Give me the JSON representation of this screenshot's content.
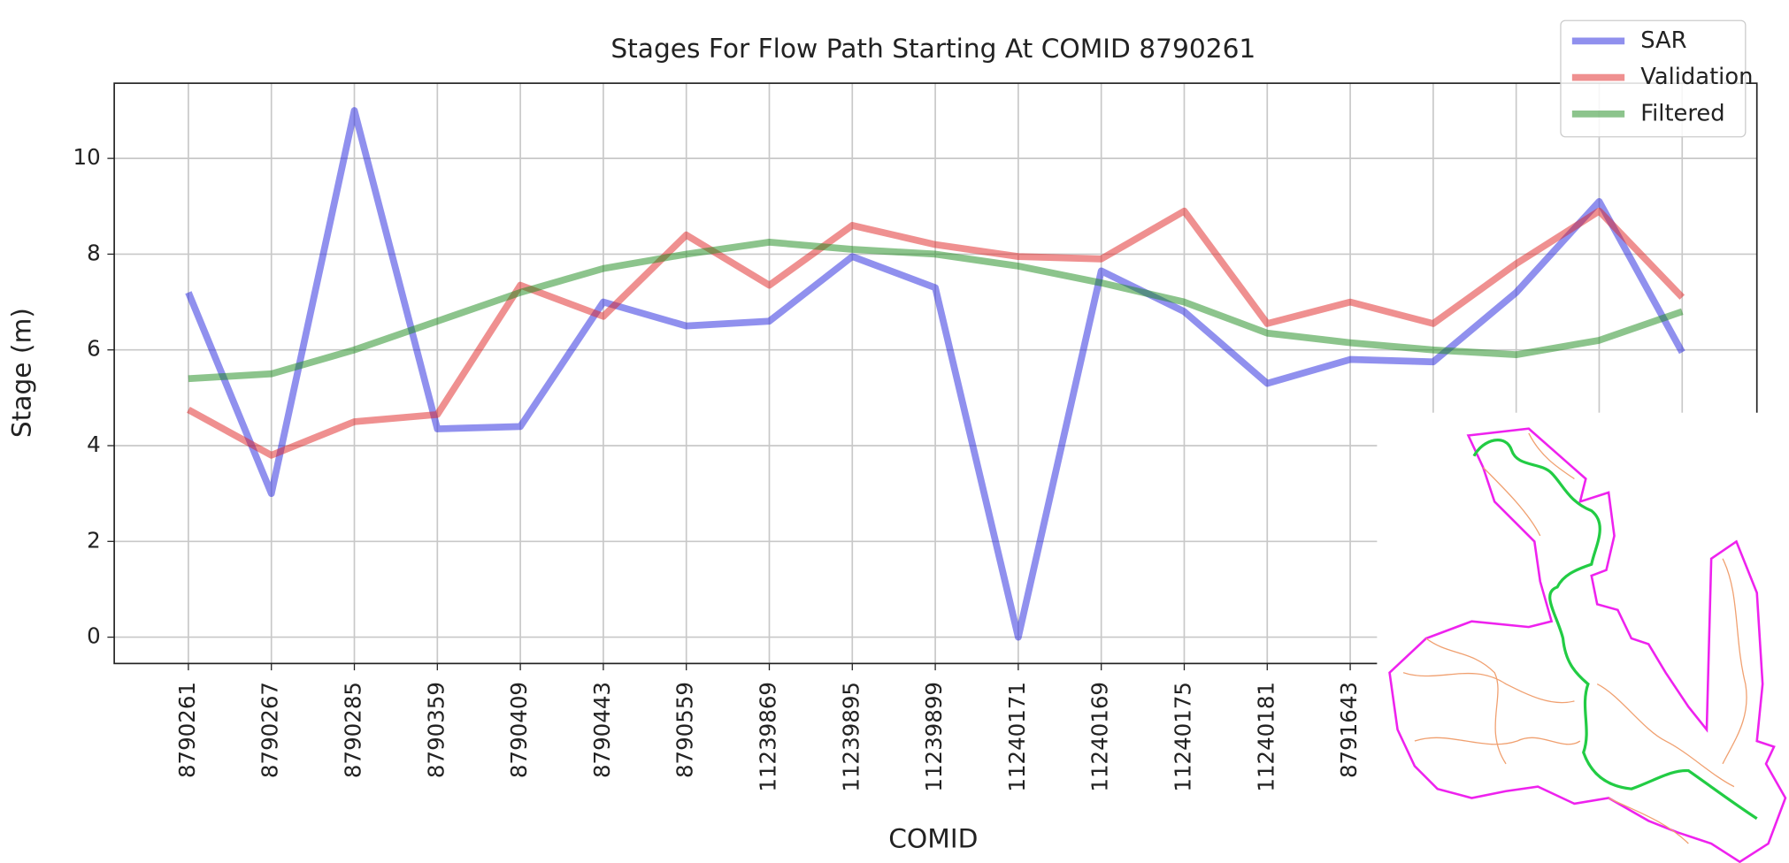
{
  "chart_data": {
    "type": "line",
    "title": "Stages For Flow Path Starting At COMID 8790261",
    "x_label": "COMID",
    "y_label": "Stage (m)",
    "categories": [
      "8790261",
      "8790267",
      "8790285",
      "8790359",
      "8790409",
      "8790443",
      "8790559",
      "11239869",
      "11239895",
      "11239899",
      "11240171",
      "11240169",
      "11240175",
      "11240181",
      "8791643",
      null,
      null,
      null,
      null
    ],
    "series": [
      {
        "name": "SAR",
        "color": "#2222dd",
        "values": [
          7.2,
          3.0,
          11.0,
          4.35,
          4.4,
          7.0,
          6.5,
          6.6,
          7.95,
          7.3,
          0,
          7.65,
          6.8,
          5.3,
          5.8,
          5.75,
          7.2,
          9.1,
          5.95
        ]
      },
      {
        "name": "Validation",
        "color": "#e02222",
        "values": [
          4.75,
          3.8,
          4.5,
          4.65,
          7.35,
          6.7,
          8.4,
          7.35,
          8.6,
          8.2,
          7.95,
          7.9,
          8.9,
          6.55,
          7.0,
          6.55,
          7.8,
          8.9,
          7.1
        ]
      },
      {
        "name": "Filtered",
        "color": "#1a8a1a",
        "values": [
          5.4,
          5.5,
          6.0,
          6.6,
          7.2,
          7.7,
          8.0,
          8.25,
          8.1,
          8.0,
          7.75,
          7.4,
          7.0,
          6.35,
          6.15,
          6.0,
          5.9,
          6.2,
          6.8
        ]
      }
    ],
    "ylim": [
      -0.55,
      11.57
    ],
    "yticks": [
      0,
      2,
      4,
      6,
      8,
      10
    ],
    "grid": true,
    "legend": "upper right"
  }
}
